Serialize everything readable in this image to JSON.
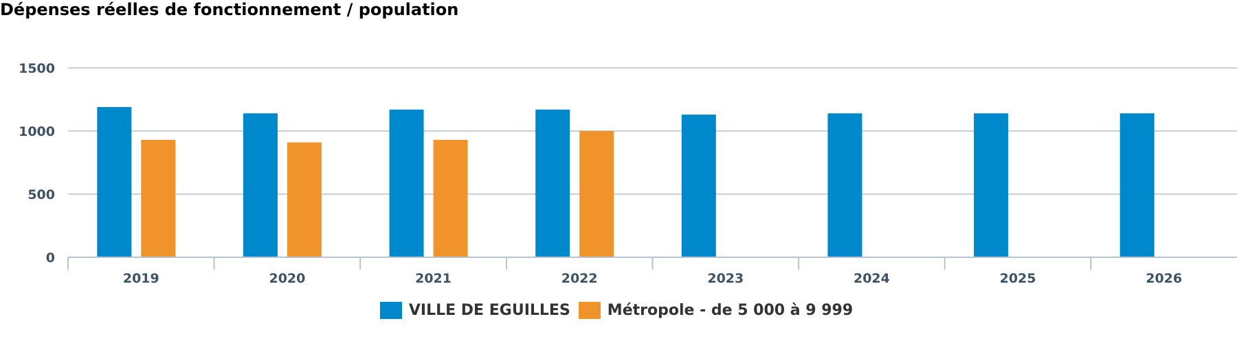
{
  "chart_data": {
    "type": "bar",
    "title": "Dépenses réelles de fonctionnement / population",
    "xlabel": "",
    "ylabel": "",
    "categories": [
      "2019",
      "2020",
      "2021",
      "2022",
      "2023",
      "2024",
      "2025",
      "2026"
    ],
    "series": [
      {
        "name": "VILLE DE EGUILLES",
        "color": "#0088cc",
        "values": [
          1190,
          1140,
          1170,
          1170,
          1130,
          1140,
          1140,
          1140
        ]
      },
      {
        "name": "Métropole - de 5 000 à 9 999",
        "color": "#f0932a",
        "values": [
          930,
          910,
          930,
          1000,
          null,
          null,
          null,
          null
        ]
      }
    ],
    "y_ticks": [
      "0",
      "500",
      "1000",
      "1500"
    ],
    "ylim": [
      0,
      1500
    ],
    "grid": true,
    "legend_position": "bottom-center"
  }
}
